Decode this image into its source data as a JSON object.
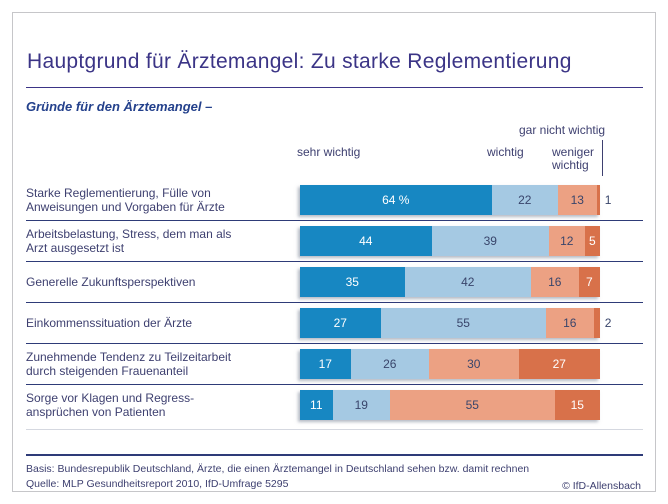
{
  "page": {
    "title": "Hauptgrund für Ärztemangel: Zu starke Reglementierung",
    "subtitle": "Gründe für den Ärztemangel –"
  },
  "legend": {
    "sehr_wichtig": "sehr wichtig",
    "wichtig": "wichtig",
    "weniger_wichtig": "weniger wichtig",
    "gar_nicht_wichtig": "gar nicht wichtig"
  },
  "footer": {
    "basis": "Basis: Bundesrepublik Deutschland, Ärzte, die einen Ärztemangel in Deutschland sehen bzw. damit rechnen",
    "quelle": "Quelle: MLP Gesundheitsreport 2010, IfD-Umfrage 5295",
    "copyright": "© IfD-Allensbach"
  },
  "palette": {
    "title_navy": "#3b3486",
    "divider_navy": "#2e3b78",
    "label_navy": "#3e4070",
    "value_navy": "#39456b",
    "frame_gray": "#c6c6c9"
  },
  "chart_data": {
    "type": "bar",
    "orientation": "horizontal",
    "stacked": true,
    "unit": "percent",
    "xlim": [
      0,
      100
    ],
    "value_suffix_first_cell": " %",
    "outside_label_max": 2,
    "legend_position": "top",
    "grid": false,
    "categories": [
      "Starke Reglementierung, Fülle von\nAnweisungen und Vorgaben für Ärzte",
      "Arbeitsbelastung, Stress, dem man als\nArzt ausgesetzt ist",
      "Generelle Zukunftsperspektiven",
      "Einkommenssituation der Ärzte",
      "Zunehmende Tendenz zu Teilzeitarbeit\ndurch steigenden Frauenanteil",
      "Sorge vor Klagen und Regress-\nansprüchen von Patienten"
    ],
    "series": [
      {
        "name": "sehr wichtig",
        "color": "#1787c2",
        "text_color": "#ffffff",
        "values": [
          64,
          44,
          35,
          27,
          17,
          11
        ]
      },
      {
        "name": "wichtig",
        "color": "#a5c9e3",
        "text_color": "#39456b",
        "values": [
          22,
          39,
          42,
          55,
          26,
          19
        ]
      },
      {
        "name": "weniger wichtig",
        "color": "#eca183",
        "text_color": "#39456b",
        "values": [
          13,
          12,
          16,
          16,
          30,
          55
        ]
      },
      {
        "name": "gar nicht wichtig",
        "color": "#d8714a",
        "text_color": "#ffffff",
        "values": [
          1,
          5,
          7,
          2,
          27,
          15
        ]
      }
    ]
  }
}
